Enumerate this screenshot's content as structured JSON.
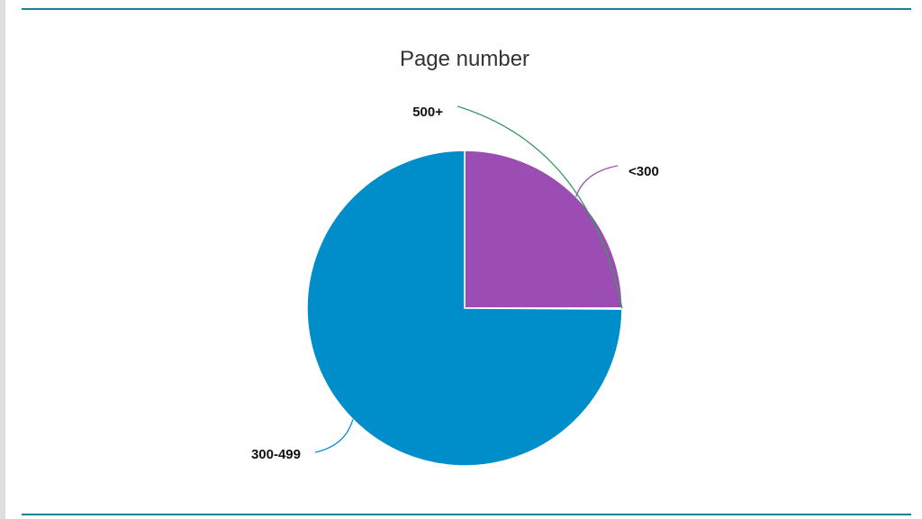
{
  "chart_data": {
    "type": "pie",
    "title": "Page number",
    "slices": [
      {
        "label": "<300",
        "value": 25,
        "color": "#9b4db3"
      },
      {
        "label": "500+",
        "value": 0.1,
        "color": "#3a9a5c"
      },
      {
        "label": "300-499",
        "value": 74.9,
        "color": "#008ecb"
      }
    ],
    "start_angle_deg": 0,
    "direction": "clockwise",
    "legend": "none",
    "label_style": "outside-with-leader-lines"
  },
  "theme": {
    "rule_color": "#1f7f93",
    "slice_border": "#ffffff"
  }
}
